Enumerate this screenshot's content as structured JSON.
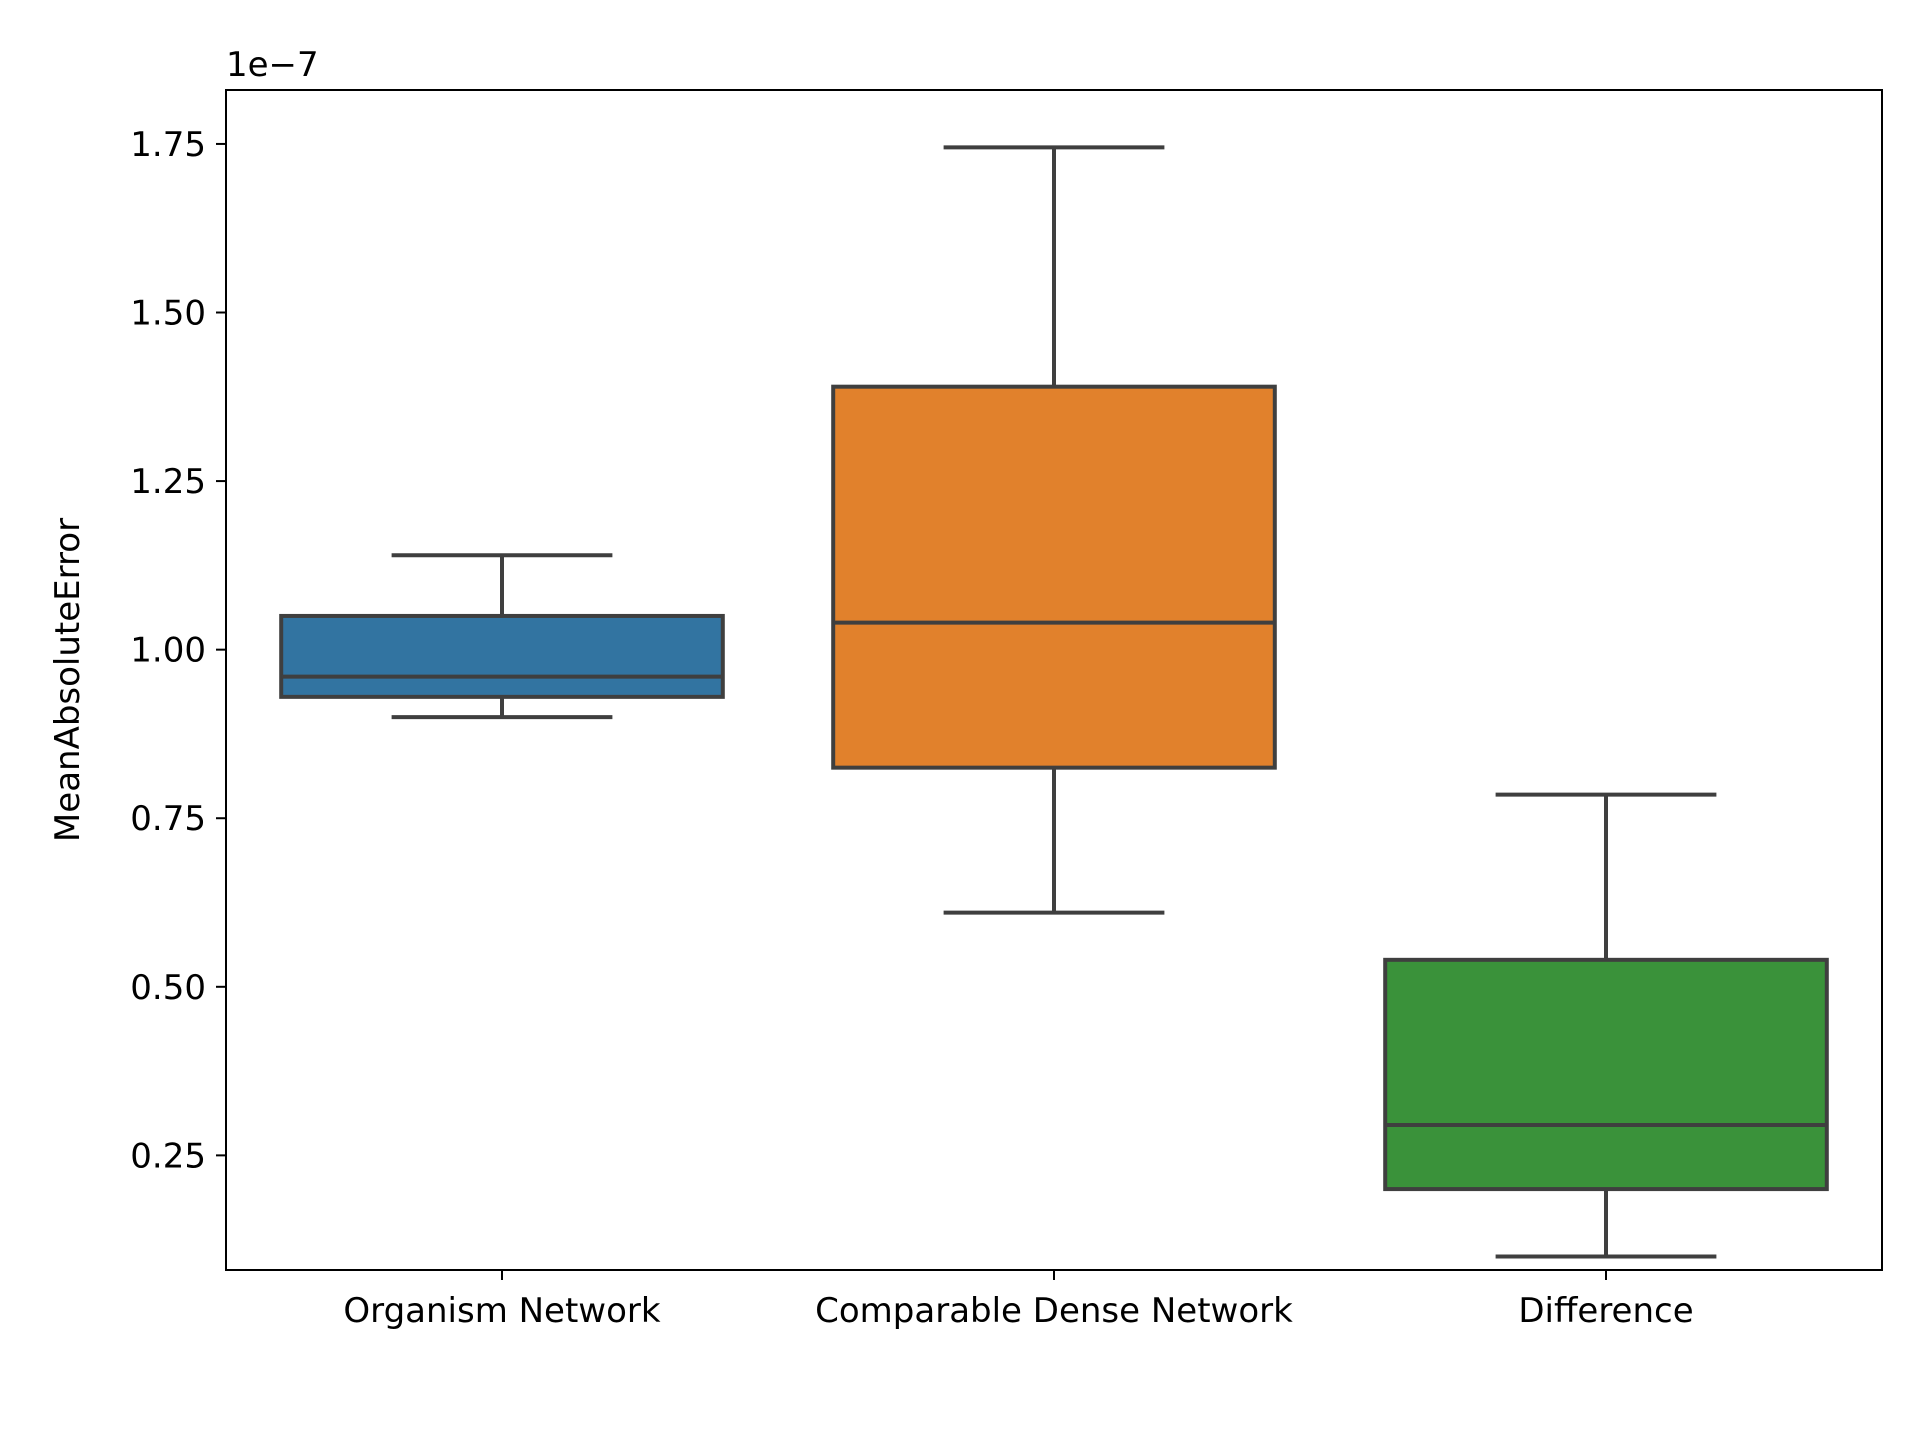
{
  "chart_data": {
    "type": "box",
    "title": "",
    "xlabel": "",
    "ylabel": "MeanAbsoluteError",
    "y_offset_label": "1e−7",
    "y_scale_exponent": -7,
    "ylim": [
      0.08,
      1.83
    ],
    "yticks": [
      0.25,
      0.5,
      0.75,
      1.0,
      1.25,
      1.5,
      1.75
    ],
    "ytick_labels": [
      "0.25",
      "0.50",
      "0.75",
      "1.00",
      "1.25",
      "1.50",
      "1.75"
    ],
    "grid": false,
    "legend": "none",
    "categories": [
      "Organism Network",
      "Comparable Dense Network",
      "Difference"
    ],
    "series": [
      {
        "category": "Organism Network",
        "color": "#3274a1",
        "whisker_low": 0.9,
        "q1": 0.93,
        "median": 0.96,
        "q3": 1.05,
        "whisker_high": 1.14
      },
      {
        "category": "Comparable Dense Network",
        "color": "#e1812c",
        "whisker_low": 0.61,
        "q1": 0.825,
        "median": 1.04,
        "q3": 1.39,
        "whisker_high": 1.745
      },
      {
        "category": "Difference",
        "color": "#3a923a",
        "whisker_low": 0.1,
        "q1": 0.2,
        "median": 0.295,
        "q3": 0.54,
        "whisker_high": 0.785
      }
    ]
  }
}
